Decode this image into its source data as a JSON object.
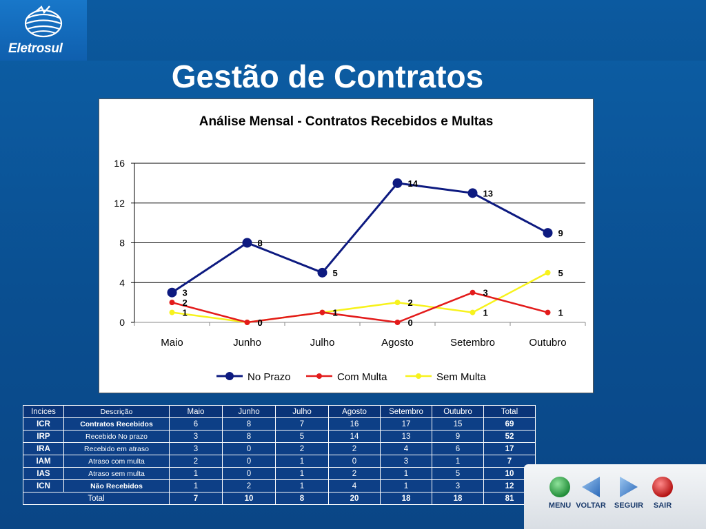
{
  "brand": {
    "name": "Eletrosul"
  },
  "page": {
    "title": "Gestão de Contratos"
  },
  "chart_data": {
    "type": "line",
    "title": "Análise Mensal - Contratos Recebidos e Multas",
    "categories": [
      "Maio",
      "Junho",
      "Julho",
      "Agosto",
      "Setembro",
      "Outubro"
    ],
    "series": [
      {
        "name": "No Prazo",
        "values": [
          3,
          8,
          5,
          14,
          13,
          9
        ],
        "color": "#0d1a80"
      },
      {
        "name": "Com Multa",
        "values": [
          2,
          0,
          1,
          0,
          3,
          1
        ],
        "color": "#e31b1b"
      },
      {
        "name": "Sem Multa",
        "values": [
          1,
          0,
          1,
          2,
          1,
          5
        ],
        "color": "#f7f21c"
      }
    ],
    "ylim": [
      0,
      16
    ],
    "yticks": [
      "0",
      "4",
      "8",
      "12",
      "16"
    ],
    "grid": true,
    "legend": "bottom"
  },
  "table": {
    "headers": [
      "Incices",
      "Descrição",
      "Maio",
      "Junho",
      "Julho",
      "Agosto",
      "Setembro",
      "Outubro",
      "Total"
    ],
    "rows": [
      {
        "code": "ICR",
        "desc": "Contratos Recebidos",
        "desc_bold": true,
        "values": [
          "6",
          "8",
          "7",
          "16",
          "17",
          "15"
        ],
        "total": "69"
      },
      {
        "code": "IRP",
        "desc": "Recebido No prazo",
        "desc_bold": false,
        "values": [
          "3",
          "8",
          "5",
          "14",
          "13",
          "9"
        ],
        "total": "52"
      },
      {
        "code": "IRA",
        "desc": "Recebido em atraso",
        "desc_bold": false,
        "values": [
          "3",
          "0",
          "2",
          "2",
          "4",
          "6"
        ],
        "total": "17"
      },
      {
        "code": "IAM",
        "desc": "Atraso com multa",
        "desc_bold": false,
        "values": [
          "2",
          "0",
          "1",
          "0",
          "3",
          "1"
        ],
        "total": "7"
      },
      {
        "code": "IAS",
        "desc": "Atraso sem multa",
        "desc_bold": false,
        "values": [
          "1",
          "0",
          "1",
          "2",
          "1",
          "5"
        ],
        "total": "10"
      },
      {
        "code": "ICN",
        "desc": "Não Recebidos",
        "desc_bold": true,
        "values": [
          "1",
          "2",
          "1",
          "4",
          "1",
          "3"
        ],
        "total": "12"
      }
    ],
    "total_row": {
      "label": "Total",
      "values": [
        "7",
        "10",
        "8",
        "20",
        "18",
        "18"
      ],
      "total": "81"
    }
  },
  "nav": {
    "menu": "MENU",
    "back": "VOLTAR",
    "next": "SEGUIR",
    "exit": "SAIR"
  },
  "colors": {
    "background": "#0b5499",
    "table_bg": "#0d3f86",
    "menu_green": "#2fa84a",
    "arrow_blue": "#3d7fd0",
    "exit_red": "#d21a1a"
  }
}
